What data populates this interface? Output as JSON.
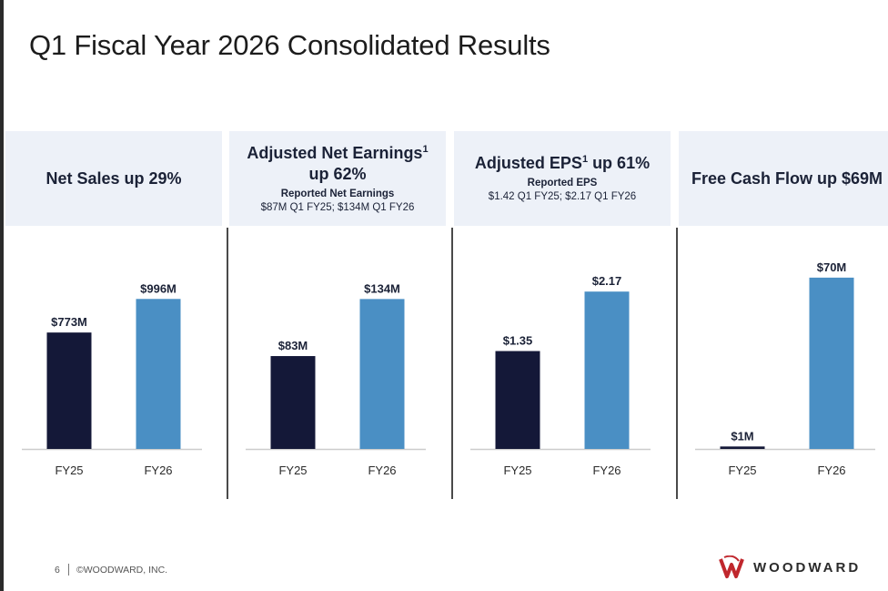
{
  "page": {
    "title": "Q1 Fiscal Year 2026 Consolidated Results",
    "footer": {
      "page_number": "6",
      "copyright": "©WOODWARD, INC."
    },
    "logo_text": "WOODWARD"
  },
  "panels": [
    {
      "title": "Net Sales up 29%",
      "title_line2": "",
      "sup": "",
      "sub1": "",
      "sub2": ""
    },
    {
      "title": "Adjusted Net Earnings",
      "sup": "1",
      "title_line2": "up 62%",
      "sub1": "Reported Net Earnings",
      "sub2": "$87M Q1 FY25; $134M Q1 FY26"
    },
    {
      "title": "Adjusted EPS",
      "sup": "1",
      "title_line2": " up 61%",
      "sub1": "Reported EPS",
      "sub2": "$1.42 Q1 FY25; $2.17 Q1 FY26"
    },
    {
      "title": "Free Cash Flow up $69M",
      "title_line2": "",
      "sup": "",
      "sub1": "",
      "sub2": ""
    }
  ],
  "colors": {
    "fy25": "#141838",
    "fy26": "#4a8fc4",
    "header_bg": "#edf1f8",
    "axis": "#cccccc"
  },
  "chart_data": [
    {
      "type": "bar",
      "categories": [
        "FY25",
        "FY26"
      ],
      "values": [
        773,
        996
      ],
      "labels": [
        "$773M",
        "$996M"
      ],
      "unit": "$M",
      "ylim": [
        0,
        1300
      ],
      "grid": false,
      "colors": [
        "#141838",
        "#4a8fc4"
      ]
    },
    {
      "type": "bar",
      "categories": [
        "FY25",
        "FY26"
      ],
      "values": [
        83,
        134
      ],
      "labels": [
        "$83M",
        "$134M"
      ],
      "unit": "$M",
      "ylim": [
        0,
        175
      ],
      "grid": false,
      "colors": [
        "#141838",
        "#4a8fc4"
      ]
    },
    {
      "type": "bar",
      "categories": [
        "FY25",
        "FY26"
      ],
      "values": [
        1.35,
        2.17
      ],
      "labels": [
        "$1.35",
        "$2.17"
      ],
      "unit": "$",
      "ylim": [
        0,
        2.7
      ],
      "grid": false,
      "colors": [
        "#141838",
        "#4a8fc4"
      ]
    },
    {
      "type": "bar",
      "categories": [
        "FY25",
        "FY26"
      ],
      "values": [
        1,
        70
      ],
      "labels": [
        "$1M",
        "$70M"
      ],
      "unit": "$M",
      "ylim": [
        0,
        80
      ],
      "grid": false,
      "colors": [
        "#141838",
        "#4a8fc4"
      ]
    }
  ]
}
